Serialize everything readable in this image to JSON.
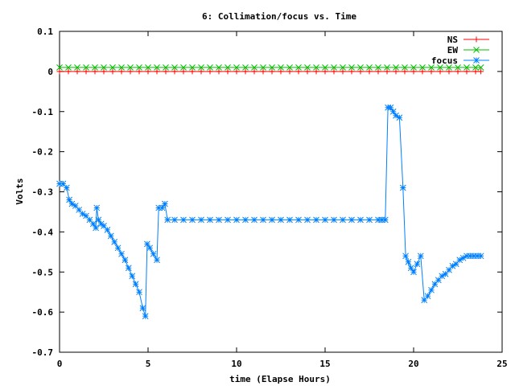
{
  "chart_data": {
    "type": "line",
    "title": "6: Collimation/focus vs. Time",
    "xlabel": "time (Elapse Hours)",
    "ylabel": "Volts",
    "xlim": [
      0,
      25
    ],
    "ylim": [
      -0.7,
      0.1
    ],
    "x_ticks": [
      "0",
      "5",
      "10",
      "15",
      "20",
      "25"
    ],
    "y_ticks": [
      "0.1",
      "0",
      "-0.1",
      "-0.2",
      "-0.3",
      "-0.4",
      "-0.5",
      "-0.6",
      "-0.7"
    ],
    "grid": false,
    "legend_position": "top-right",
    "series": [
      {
        "name": "NS",
        "color": "#ff0000",
        "marker": "plus",
        "x": [
          0,
          0.5,
          1,
          1.5,
          2,
          2.5,
          3,
          3.5,
          4,
          4.5,
          5,
          5.5,
          6,
          6.5,
          7,
          7.5,
          8,
          8.5,
          9,
          9.5,
          10,
          10.5,
          11,
          11.5,
          12,
          12.5,
          13,
          13.5,
          14,
          14.5,
          15,
          15.5,
          16,
          16.5,
          17,
          17.5,
          18,
          18.5,
          19,
          19.5,
          20,
          20.5,
          21,
          21.5,
          22,
          22.5,
          23,
          23.5,
          23.8
        ],
        "y": [
          0,
          0,
          0,
          0,
          0,
          0,
          0,
          0,
          0,
          0,
          0,
          0,
          0,
          0,
          0,
          0,
          0,
          0,
          0,
          0,
          0,
          0,
          0,
          0,
          0,
          0,
          0,
          0,
          0,
          0,
          0,
          0,
          0,
          0,
          0,
          0,
          0,
          0,
          0,
          0,
          0,
          0,
          0,
          0,
          0,
          0,
          0,
          0,
          0
        ]
      },
      {
        "name": "EW",
        "color": "#00c000",
        "marker": "x",
        "x": [
          0,
          0.5,
          1,
          1.5,
          2,
          2.5,
          3,
          3.5,
          4,
          4.5,
          5,
          5.5,
          6,
          6.5,
          7,
          7.5,
          8,
          8.5,
          9,
          9.5,
          10,
          10.5,
          11,
          11.5,
          12,
          12.5,
          13,
          13.5,
          14,
          14.5,
          15,
          15.5,
          16,
          16.5,
          17,
          17.5,
          18,
          18.5,
          19,
          19.5,
          20,
          20.5,
          21,
          21.5,
          22,
          22.5,
          23,
          23.5,
          23.8
        ],
        "y": [
          0.01,
          0.01,
          0.01,
          0.01,
          0.01,
          0.01,
          0.01,
          0.01,
          0.01,
          0.01,
          0.01,
          0.01,
          0.01,
          0.01,
          0.01,
          0.01,
          0.01,
          0.01,
          0.01,
          0.01,
          0.01,
          0.01,
          0.01,
          0.01,
          0.01,
          0.01,
          0.01,
          0.01,
          0.01,
          0.01,
          0.01,
          0.01,
          0.01,
          0.01,
          0.01,
          0.01,
          0.01,
          0.01,
          0.01,
          0.01,
          0.01,
          0.01,
          0.01,
          0.01,
          0.01,
          0.01,
          0.01,
          0.01,
          0.01
        ]
      },
      {
        "name": "focus",
        "color": "#0080ff",
        "marker": "star",
        "x": [
          0,
          0.2,
          0.4,
          0.55,
          0.7,
          0.9,
          1.1,
          1.3,
          1.5,
          1.7,
          1.9,
          2.05,
          2.1,
          2.2,
          2.35,
          2.5,
          2.7,
          2.9,
          3.1,
          3.3,
          3.5,
          3.7,
          3.9,
          4.1,
          4.3,
          4.5,
          4.7,
          4.85,
          4.95,
          5.1,
          5.3,
          5.5,
          5.6,
          5.8,
          5.95,
          6.1,
          6.5,
          7,
          7.5,
          8,
          8.5,
          9,
          9.5,
          10,
          10.5,
          11,
          11.5,
          12,
          12.5,
          13,
          13.5,
          14,
          14.5,
          15,
          15.5,
          16,
          16.5,
          17,
          17.5,
          18,
          18.2,
          18.4,
          18.55,
          18.7,
          18.85,
          19.0,
          19.2,
          19.4,
          19.55,
          19.7,
          19.85,
          20.0,
          20.2,
          20.4,
          20.6,
          20.8,
          21.0,
          21.2,
          21.4,
          21.6,
          21.8,
          22.0,
          22.2,
          22.4,
          22.6,
          22.8,
          23.0,
          23.2,
          23.4,
          23.6,
          23.8
        ],
        "y": [
          -0.28,
          -0.28,
          -0.29,
          -0.32,
          -0.33,
          -0.335,
          -0.345,
          -0.355,
          -0.36,
          -0.37,
          -0.38,
          -0.39,
          -0.34,
          -0.37,
          -0.38,
          -0.385,
          -0.395,
          -0.41,
          -0.425,
          -0.44,
          -0.455,
          -0.47,
          -0.49,
          -0.51,
          -0.53,
          -0.55,
          -0.59,
          -0.61,
          -0.43,
          -0.44,
          -0.455,
          -0.47,
          -0.34,
          -0.34,
          -0.33,
          -0.37,
          -0.37,
          -0.37,
          -0.37,
          -0.37,
          -0.37,
          -0.37,
          -0.37,
          -0.37,
          -0.37,
          -0.37,
          -0.37,
          -0.37,
          -0.37,
          -0.37,
          -0.37,
          -0.37,
          -0.37,
          -0.37,
          -0.37,
          -0.37,
          -0.37,
          -0.37,
          -0.37,
          -0.37,
          -0.37,
          -0.37,
          -0.09,
          -0.09,
          -0.1,
          -0.11,
          -0.115,
          -0.29,
          -0.46,
          -0.475,
          -0.49,
          -0.5,
          -0.48,
          -0.46,
          -0.57,
          -0.56,
          -0.545,
          -0.53,
          -0.52,
          -0.51,
          -0.505,
          -0.495,
          -0.485,
          -0.48,
          -0.47,
          -0.465,
          -0.46,
          -0.46,
          -0.46,
          -0.46,
          -0.46
        ]
      }
    ]
  }
}
